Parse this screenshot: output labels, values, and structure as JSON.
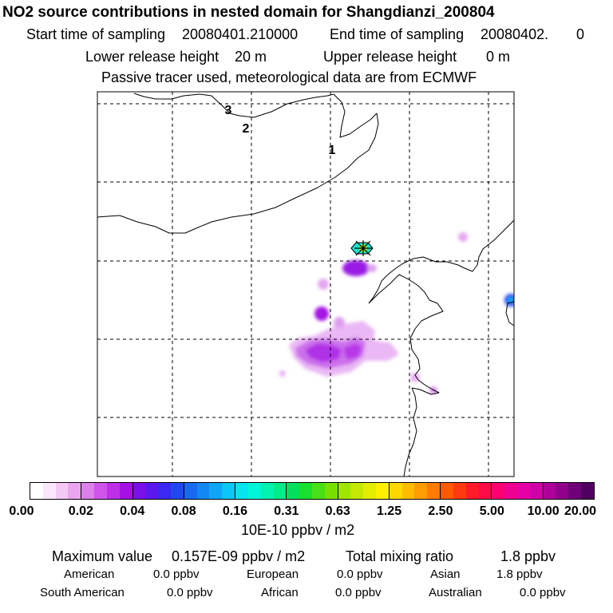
{
  "title": "NO2 source contributions in nested domain for Shangdianzi_200804",
  "sampling": {
    "start_label": "Start time of sampling",
    "start_value": "20080401.210000",
    "end_label": "End time of sampling",
    "end_value": "20080402.",
    "end_extra": "0"
  },
  "release": {
    "lower_label": "Lower release height",
    "lower_value": "20 m",
    "upper_label": "Upper release height",
    "upper_value": "0 m"
  },
  "info": "Passive tracer used, meteorological data are from ECMWF",
  "map": {
    "labels": [
      "3",
      "2",
      "1"
    ],
    "station_marker": "station-marker-icon"
  },
  "colorbar": {
    "ticks": [
      "0.00",
      "0.02",
      "0.04",
      "0.08",
      "0.16",
      "0.31",
      "0.63",
      "1.25",
      "2.50",
      "5.00",
      "10.00",
      "20.00"
    ],
    "units": "10E-10 ppbv / m2",
    "segments": [
      [
        "#ffffff",
        "#fbe7fb",
        "#f4c8f4",
        "#e9a6ef"
      ],
      [
        "#dd80ec",
        "#cf55ea",
        "#bd2fe8",
        "#a410e3"
      ],
      [
        "#7a10e8",
        "#5a18ee",
        "#3b28f2",
        "#2148f0"
      ],
      [
        "#1a6af0",
        "#1488f2",
        "#0ea6f5",
        "#0ac6f5"
      ],
      [
        "#06e4ef",
        "#00f5d8",
        "#00f2b0",
        "#00ec88"
      ],
      [
        "#00e05a",
        "#18e030",
        "#48e018",
        "#78e000"
      ],
      [
        "#a0e400",
        "#c4e800",
        "#e4ec00",
        "#fff000"
      ],
      [
        "#ffd800",
        "#ffbc00",
        "#ff9c00",
        "#ff7c00"
      ],
      [
        "#ff5a00",
        "#ff3a10",
        "#ff1c28",
        "#ff0a48"
      ],
      [
        "#ff0070",
        "#f00090",
        "#e400a4",
        "#d000a8"
      ],
      [
        "#b0009a",
        "#90008a",
        "#700078",
        "#500060"
      ]
    ]
  },
  "stats": {
    "max_label": "Maximum value",
    "max_value": "0.157E-09 ppbv / m2",
    "total_label": "Total mixing ratio",
    "total_value": "1.8 ppbv",
    "regions": [
      {
        "name": "American",
        "value": "0.0 ppbv"
      },
      {
        "name": "European",
        "value": "0.0 ppbv"
      },
      {
        "name": "Asian",
        "value": "1.8 ppbv"
      },
      {
        "name": "South American",
        "value": "0.0 ppbv"
      },
      {
        "name": "African",
        "value": "0.0 ppbv"
      },
      {
        "name": "Australian",
        "value": "0.0 ppbv"
      }
    ]
  }
}
